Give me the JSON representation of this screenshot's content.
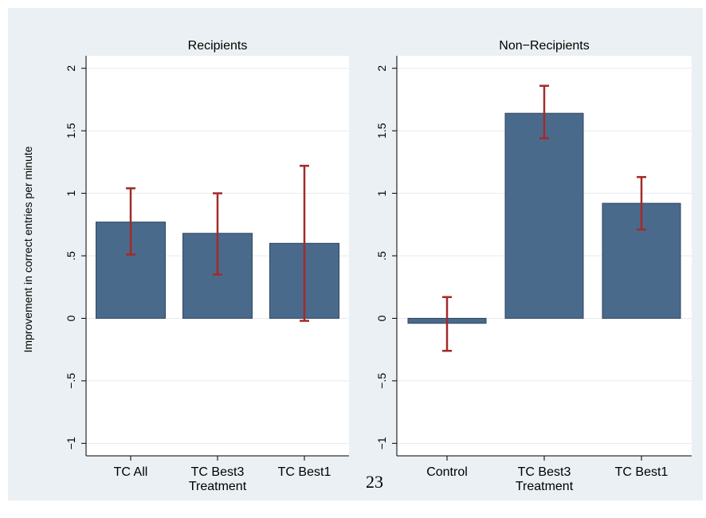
{
  "page_number": "23",
  "colors": {
    "outer_background": "#eaf0f3",
    "plot_background": "#ffffff",
    "bar_fill": "#4a6a8c",
    "bar_stroke": "#2f4560",
    "error_bar": "#a32a2a",
    "grid": "#e6ebee"
  },
  "chart_data": [
    {
      "type": "bar",
      "title": "Recipients",
      "xlabel": "Treatment",
      "ylabel": "Improvement in correct entries per minute",
      "ylim": [
        -1.1,
        2.1
      ],
      "yticks": [
        -1,
        -0.5,
        0,
        0.5,
        1,
        1.5,
        2
      ],
      "ytick_labels": [
        "−1",
        "−.5",
        "0",
        ".5",
        "1",
        "1.5",
        "2"
      ],
      "grid": true,
      "categories": [
        "TC All",
        "TC Best3",
        "TC Best1"
      ],
      "values": [
        0.77,
        0.68,
        0.6
      ],
      "error_low": [
        0.51,
        0.35,
        -0.02
      ],
      "error_high": [
        1.04,
        1.0,
        1.22
      ]
    },
    {
      "type": "bar",
      "title": "Non−Recipients",
      "xlabel": "Treatment",
      "ylabel": "",
      "ylim": [
        -1.1,
        2.1
      ],
      "yticks": [
        -1,
        -0.5,
        0,
        0.5,
        1,
        1.5,
        2
      ],
      "ytick_labels": [
        "−1",
        "−.5",
        "0",
        ".5",
        "1",
        "1.5",
        "2"
      ],
      "grid": true,
      "categories": [
        "Control",
        "TC Best3",
        "TC Best1"
      ],
      "values": [
        -0.04,
        1.64,
        0.92
      ],
      "error_low": [
        -0.26,
        1.44,
        0.71
      ],
      "error_high": [
        0.17,
        1.86,
        1.13
      ]
    }
  ]
}
